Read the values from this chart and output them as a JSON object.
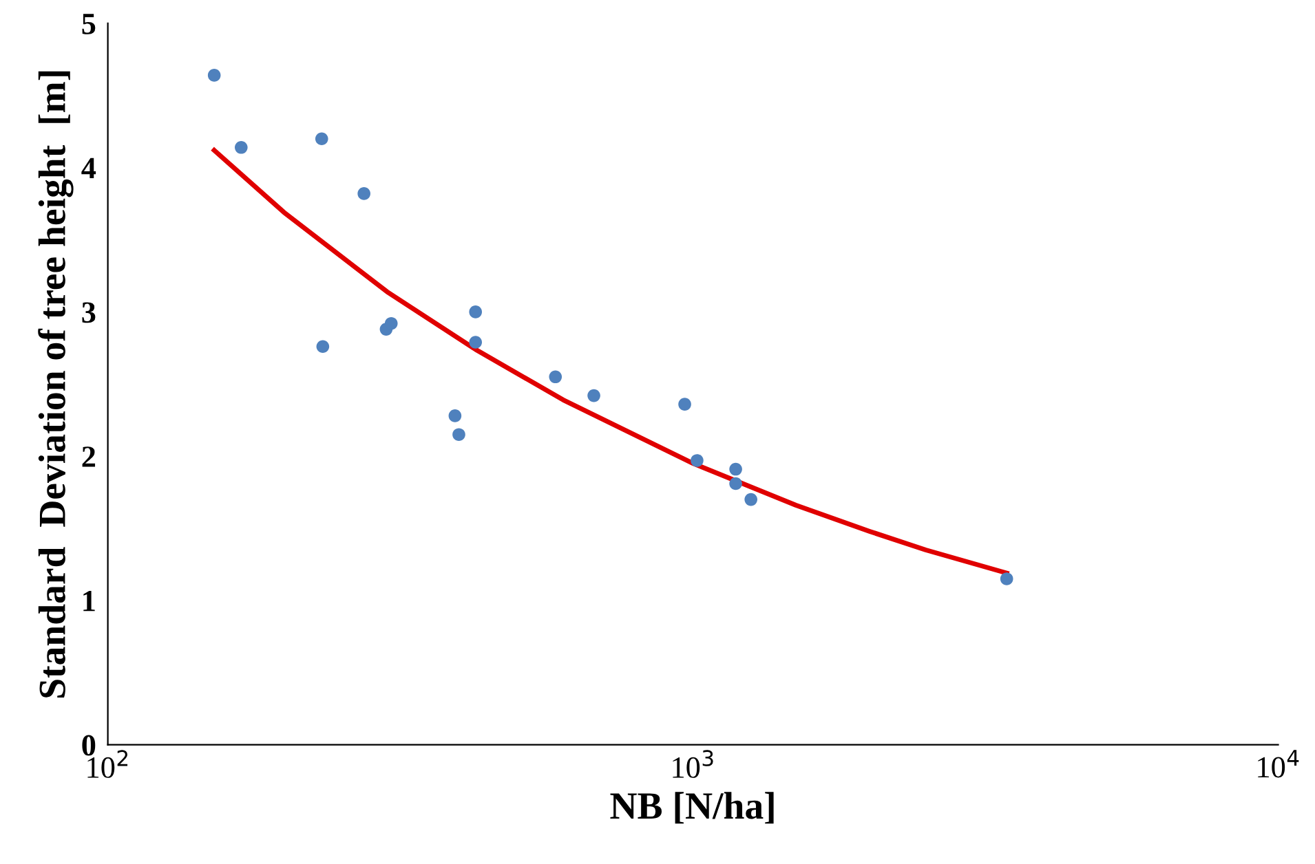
{
  "chart_data": {
    "type": "scatter",
    "xlabel": "NB [N/ha]",
    "ylabel": "Standard  Deviation of tree height  [m]",
    "log": "x",
    "grid": false,
    "legend": false,
    "xlim": [
      100,
      10000
    ],
    "ylim": [
      0,
      5
    ],
    "xticks": [
      {
        "value": 100,
        "label": "10$^{2}$"
      },
      {
        "value": 1000,
        "label": "10$^{3}$"
      },
      {
        "value": 10000,
        "label": "10$^{4}$"
      }
    ],
    "yticks": [
      0,
      1,
      2,
      3,
      4,
      5
    ],
    "series": [
      {
        "marker": "circle",
        "color": "#4f81bd",
        "x": [
          152,
          169,
          232,
          233,
          274,
          299,
          305,
          392,
          398,
          425,
          425,
          582,
          677,
          968,
          1016,
          1183,
          1183,
          1256,
          3436
        ],
        "values": [
          4.64,
          4.14,
          4.2,
          2.76,
          3.82,
          2.88,
          2.92,
          2.28,
          2.15,
          3.0,
          2.79,
          2.55,
          2.42,
          2.36,
          1.97,
          1.91,
          1.81,
          1.7,
          1.15
        ]
      },
      {
        "type": "line",
        "color": "#e00000",
        "marker": "none",
        "x": [
          152,
          200,
          300,
          425,
          600,
          1000,
          1500,
          2000,
          2500,
          3436
        ],
        "values": [
          4.12,
          3.69,
          3.14,
          2.74,
          2.39,
          1.95,
          1.66,
          1.48,
          1.35,
          1.19
        ]
      }
    ]
  }
}
